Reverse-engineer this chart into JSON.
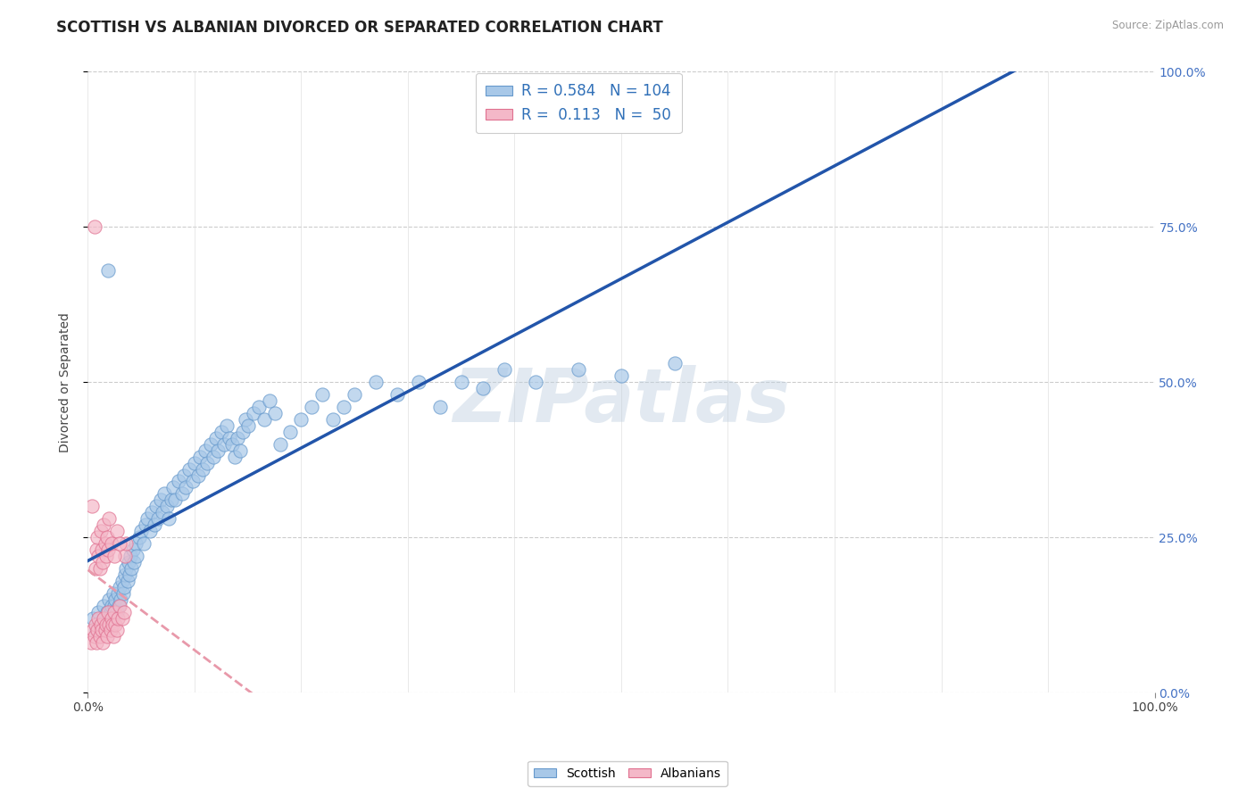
{
  "title": "SCOTTISH VS ALBANIAN DIVORCED OR SEPARATED CORRELATION CHART",
  "source_text": "Source: ZipAtlas.com",
  "ylabel": "Divorced or Separated",
  "scottish_color": "#a8c8e8",
  "scottish_edge_color": "#6699cc",
  "albanian_color": "#f4b8c8",
  "albanian_edge_color": "#e07090",
  "scottish_line_color": "#2255aa",
  "albanian_line_color": "#e899aa",
  "watermark": "ZIPatlas",
  "scottish_R": 0.584,
  "scottish_N": 104,
  "albanian_R": 0.113,
  "albanian_N": 50,
  "background_color": "#ffffff",
  "plot_bg_color": "#ffffff",
  "grid_color": "#cccccc",
  "scottish_points": [
    [
      0.005,
      0.12
    ],
    [
      0.008,
      0.1
    ],
    [
      0.01,
      0.13
    ],
    [
      0.012,
      0.11
    ],
    [
      0.015,
      0.14
    ],
    [
      0.017,
      0.12
    ],
    [
      0.018,
      0.13
    ],
    [
      0.019,
      0.11
    ],
    [
      0.02,
      0.15
    ],
    [
      0.021,
      0.13
    ],
    [
      0.022,
      0.14
    ],
    [
      0.023,
      0.12
    ],
    [
      0.024,
      0.16
    ],
    [
      0.025,
      0.14
    ],
    [
      0.026,
      0.15
    ],
    [
      0.027,
      0.13
    ],
    [
      0.028,
      0.16
    ],
    [
      0.029,
      0.14
    ],
    [
      0.03,
      0.17
    ],
    [
      0.031,
      0.15
    ],
    [
      0.032,
      0.18
    ],
    [
      0.033,
      0.16
    ],
    [
      0.034,
      0.17
    ],
    [
      0.035,
      0.19
    ],
    [
      0.036,
      0.2
    ],
    [
      0.037,
      0.18
    ],
    [
      0.038,
      0.21
    ],
    [
      0.039,
      0.19
    ],
    [
      0.04,
      0.22
    ],
    [
      0.041,
      0.2
    ],
    [
      0.042,
      0.23
    ],
    [
      0.043,
      0.21
    ],
    [
      0.045,
      0.24
    ],
    [
      0.046,
      0.22
    ],
    [
      0.048,
      0.25
    ],
    [
      0.05,
      0.26
    ],
    [
      0.052,
      0.24
    ],
    [
      0.054,
      0.27
    ],
    [
      0.056,
      0.28
    ],
    [
      0.058,
      0.26
    ],
    [
      0.06,
      0.29
    ],
    [
      0.062,
      0.27
    ],
    [
      0.064,
      0.3
    ],
    [
      0.066,
      0.28
    ],
    [
      0.068,
      0.31
    ],
    [
      0.07,
      0.29
    ],
    [
      0.072,
      0.32
    ],
    [
      0.074,
      0.3
    ],
    [
      0.076,
      0.28
    ],
    [
      0.078,
      0.31
    ],
    [
      0.08,
      0.33
    ],
    [
      0.082,
      0.31
    ],
    [
      0.085,
      0.34
    ],
    [
      0.088,
      0.32
    ],
    [
      0.09,
      0.35
    ],
    [
      0.092,
      0.33
    ],
    [
      0.095,
      0.36
    ],
    [
      0.098,
      0.34
    ],
    [
      0.1,
      0.37
    ],
    [
      0.103,
      0.35
    ],
    [
      0.105,
      0.38
    ],
    [
      0.108,
      0.36
    ],
    [
      0.11,
      0.39
    ],
    [
      0.112,
      0.37
    ],
    [
      0.115,
      0.4
    ],
    [
      0.118,
      0.38
    ],
    [
      0.12,
      0.41
    ],
    [
      0.122,
      0.39
    ],
    [
      0.125,
      0.42
    ],
    [
      0.128,
      0.4
    ],
    [
      0.13,
      0.43
    ],
    [
      0.133,
      0.41
    ],
    [
      0.135,
      0.4
    ],
    [
      0.138,
      0.38
    ],
    [
      0.14,
      0.41
    ],
    [
      0.143,
      0.39
    ],
    [
      0.145,
      0.42
    ],
    [
      0.148,
      0.44
    ],
    [
      0.15,
      0.43
    ],
    [
      0.155,
      0.45
    ],
    [
      0.16,
      0.46
    ],
    [
      0.165,
      0.44
    ],
    [
      0.17,
      0.47
    ],
    [
      0.175,
      0.45
    ],
    [
      0.18,
      0.4
    ],
    [
      0.19,
      0.42
    ],
    [
      0.2,
      0.44
    ],
    [
      0.21,
      0.46
    ],
    [
      0.22,
      0.48
    ],
    [
      0.23,
      0.44
    ],
    [
      0.24,
      0.46
    ],
    [
      0.25,
      0.48
    ],
    [
      0.27,
      0.5
    ],
    [
      0.29,
      0.48
    ],
    [
      0.31,
      0.5
    ],
    [
      0.33,
      0.46
    ],
    [
      0.35,
      0.5
    ],
    [
      0.37,
      0.49
    ],
    [
      0.39,
      0.52
    ],
    [
      0.42,
      0.5
    ],
    [
      0.46,
      0.52
    ],
    [
      0.5,
      0.51
    ],
    [
      0.55,
      0.53
    ],
    [
      0.019,
      0.68
    ]
  ],
  "albanian_points": [
    [
      0.003,
      0.08
    ],
    [
      0.005,
      0.1
    ],
    [
      0.006,
      0.09
    ],
    [
      0.007,
      0.11
    ],
    [
      0.008,
      0.08
    ],
    [
      0.009,
      0.1
    ],
    [
      0.01,
      0.12
    ],
    [
      0.011,
      0.09
    ],
    [
      0.012,
      0.11
    ],
    [
      0.013,
      0.1
    ],
    [
      0.014,
      0.08
    ],
    [
      0.015,
      0.12
    ],
    [
      0.016,
      0.1
    ],
    [
      0.017,
      0.11
    ],
    [
      0.018,
      0.09
    ],
    [
      0.019,
      0.13
    ],
    [
      0.02,
      0.11
    ],
    [
      0.021,
      0.1
    ],
    [
      0.022,
      0.12
    ],
    [
      0.023,
      0.11
    ],
    [
      0.024,
      0.09
    ],
    [
      0.025,
      0.13
    ],
    [
      0.026,
      0.11
    ],
    [
      0.027,
      0.1
    ],
    [
      0.028,
      0.12
    ],
    [
      0.03,
      0.14
    ],
    [
      0.032,
      0.12
    ],
    [
      0.034,
      0.13
    ],
    [
      0.035,
      0.22
    ],
    [
      0.036,
      0.24
    ],
    [
      0.007,
      0.2
    ],
    [
      0.008,
      0.23
    ],
    [
      0.009,
      0.25
    ],
    [
      0.01,
      0.22
    ],
    [
      0.011,
      0.2
    ],
    [
      0.012,
      0.26
    ],
    [
      0.013,
      0.23
    ],
    [
      0.014,
      0.21
    ],
    [
      0.015,
      0.27
    ],
    [
      0.016,
      0.24
    ],
    [
      0.017,
      0.22
    ],
    [
      0.018,
      0.25
    ],
    [
      0.019,
      0.23
    ],
    [
      0.02,
      0.28
    ],
    [
      0.022,
      0.24
    ],
    [
      0.025,
      0.22
    ],
    [
      0.027,
      0.26
    ],
    [
      0.03,
      0.24
    ],
    [
      0.004,
      0.3
    ],
    [
      0.006,
      0.75
    ]
  ]
}
